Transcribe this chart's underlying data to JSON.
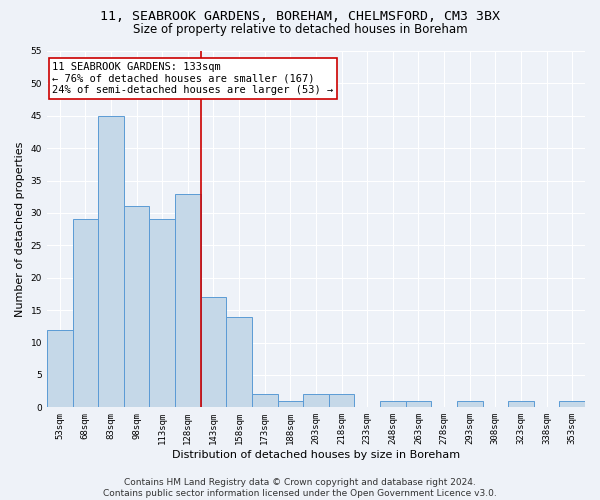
{
  "title1": "11, SEABROOK GARDENS, BOREHAM, CHELMSFORD, CM3 3BX",
  "title2": "Size of property relative to detached houses in Boreham",
  "xlabel": "Distribution of detached houses by size in Boreham",
  "ylabel": "Number of detached properties",
  "categories": [
    "53sqm",
    "68sqm",
    "83sqm",
    "98sqm",
    "113sqm",
    "128sqm",
    "143sqm",
    "158sqm",
    "173sqm",
    "188sqm",
    "203sqm",
    "218sqm",
    "233sqm",
    "248sqm",
    "263sqm",
    "278sqm",
    "293sqm",
    "308sqm",
    "323sqm",
    "338sqm",
    "353sqm"
  ],
  "values": [
    12,
    29,
    45,
    31,
    29,
    33,
    17,
    14,
    2,
    1,
    2,
    2,
    0,
    1,
    1,
    0,
    1,
    0,
    1,
    0,
    1
  ],
  "bar_color": "#c5d8e8",
  "bar_edge_color": "#5b9bd5",
  "ylim": [
    0,
    55
  ],
  "yticks": [
    0,
    5,
    10,
    15,
    20,
    25,
    30,
    35,
    40,
    45,
    50,
    55
  ],
  "annotation_box_text": "11 SEABROOK GARDENS: 133sqm\n← 76% of detached houses are smaller (167)\n24% of semi-detached houses are larger (53) →",
  "vline_x": 5.5,
  "vline_color": "#cc0000",
  "annotation_box_color": "#ffffff",
  "annotation_box_edge_color": "#cc0000",
  "footer1": "Contains HM Land Registry data © Crown copyright and database right 2024.",
  "footer2": "Contains public sector information licensed under the Open Government Licence v3.0.",
  "background_color": "#eef2f8",
  "grid_color": "#ffffff",
  "title1_fontsize": 9.5,
  "title2_fontsize": 8.5,
  "xlabel_fontsize": 8,
  "ylabel_fontsize": 8,
  "footer_fontsize": 6.5,
  "annotation_fontsize": 7.5,
  "tick_fontsize": 6.5
}
